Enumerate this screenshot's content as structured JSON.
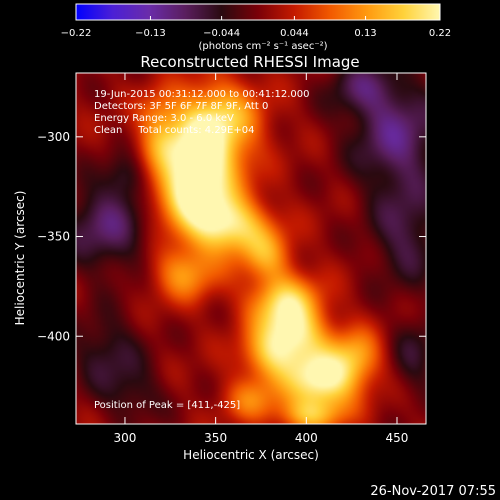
{
  "chart_data": {
    "type": "heatmap",
    "title": "Reconstructed RHESSI Image",
    "xlabel": "Heliocentric X (arcsec)",
    "ylabel": "Heliocentric Y (arcsec)",
    "xlim": [
      273,
      466
    ],
    "ylim": [
      -444,
      -268
    ],
    "x_ticks": [
      300,
      350,
      400,
      450
    ],
    "y_ticks": [
      -300,
      -350,
      -400
    ],
    "colorbar": {
      "label": "(photons cm⁻² s⁻¹ asec⁻²)",
      "range": [
        -0.22,
        0.22
      ],
      "ticks": [
        {
          "value": -0.22,
          "label": "−0.22"
        },
        {
          "value": -0.13,
          "label": "−0.13"
        },
        {
          "value": -0.044,
          "label": "−0.044"
        },
        {
          "value": 0.044,
          "label": "0.044"
        },
        {
          "value": 0.13,
          "label": "0.13"
        },
        {
          "value": 0.22,
          "label": "0.22"
        }
      ],
      "colors": [
        "#0000ff",
        "#4b1fd6",
        "#6a2caa",
        "#5a1e5e",
        "#2a0a10",
        "#7a0008",
        "#c41a00",
        "#f25a00",
        "#ff9a10",
        "#ffd23a",
        "#fff7b0"
      ]
    },
    "annotations": [
      "19-Jun-2015 00:31:12.000 to 00:41:12.000",
      "Detectors: 3F 5F 6F 7F 8F 9F, Att 0",
      "Energy Range: 3.0 - 6.0 keV",
      "Clean     Total counts: 4.29E+04"
    ],
    "peak_label": "Position of Peak = [411,-425]",
    "peak": {
      "x": 411,
      "y": -425
    },
    "blobs": [
      {
        "x": 350,
        "y": -290,
        "amp": 0.16,
        "sx": 17,
        "sy": 13
      },
      {
        "x": 342,
        "y": -312,
        "amp": 0.2,
        "sx": 16,
        "sy": 13
      },
      {
        "x": 336,
        "y": -331,
        "amp": 0.16,
        "sx": 15,
        "sy": 11
      },
      {
        "x": 357,
        "y": -345,
        "amp": 0.19,
        "sx": 16,
        "sy": 10
      },
      {
        "x": 333,
        "y": -368,
        "amp": 0.12,
        "sx": 13,
        "sy": 10
      },
      {
        "x": 378,
        "y": -360,
        "amp": 0.1,
        "sx": 10,
        "sy": 9
      },
      {
        "x": 388,
        "y": -383,
        "amp": 0.17,
        "sx": 14,
        "sy": 10
      },
      {
        "x": 393,
        "y": -399,
        "amp": 0.15,
        "sx": 13,
        "sy": 9
      },
      {
        "x": 380,
        "y": -410,
        "amp": 0.12,
        "sx": 12,
        "sy": 9
      },
      {
        "x": 408,
        "y": -422,
        "amp": 0.22,
        "sx": 14,
        "sy": 11
      },
      {
        "x": 428,
        "y": -410,
        "amp": 0.11,
        "sx": 10,
        "sy": 10
      },
      {
        "x": 370,
        "y": -432,
        "amp": 0.09,
        "sx": 11,
        "sy": 8
      },
      {
        "x": 402,
        "y": -440,
        "amp": 0.11,
        "sx": 13,
        "sy": 6
      },
      {
        "x": 320,
        "y": -302,
        "amp": 0.07,
        "sx": 9,
        "sy": 9
      },
      {
        "x": 318,
        "y": -287,
        "amp": 0.06,
        "sx": 8,
        "sy": 8
      },
      {
        "x": 290,
        "y": -345,
        "amp": -0.1,
        "sx": 18,
        "sy": 16
      },
      {
        "x": 450,
        "y": -300,
        "amp": -0.11,
        "sx": 18,
        "sy": 20
      },
      {
        "x": 455,
        "y": -350,
        "amp": -0.08,
        "sx": 14,
        "sy": 18
      },
      {
        "x": 290,
        "y": -408,
        "amp": -0.07,
        "sx": 14,
        "sy": 14
      },
      {
        "x": 430,
        "y": -275,
        "amp": -0.07,
        "sx": 14,
        "sy": 10
      },
      {
        "x": 305,
        "y": -430,
        "amp": -0.05,
        "sx": 12,
        "sy": 10
      },
      {
        "x": 300,
        "y": -320,
        "amp": -0.06,
        "sx": 8,
        "sy": 8
      },
      {
        "x": 460,
        "y": -410,
        "amp": -0.06,
        "sx": 10,
        "sy": 14
      }
    ]
  },
  "footer": {
    "date": "26-Nov-2017 07:55"
  }
}
